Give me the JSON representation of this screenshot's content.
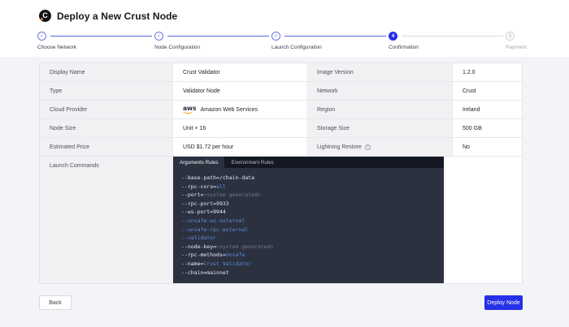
{
  "header": {
    "title": "Deploy a New Crust Node",
    "logo_letter": "C"
  },
  "stepper": {
    "steps": [
      {
        "label": "Choose Network",
        "state": "done",
        "mark": "✓"
      },
      {
        "label": "Node Configuration",
        "state": "done",
        "mark": "✓"
      },
      {
        "label": "Launch Configuration",
        "state": "done",
        "mark": "✓"
      },
      {
        "label": "Confirmation",
        "state": "active",
        "mark": "4"
      },
      {
        "label": "Payment",
        "state": "upcoming",
        "mark": "5"
      }
    ]
  },
  "table": {
    "rows": [
      {
        "label1": "Display Name",
        "value1": "Crust Validator",
        "label2": "Image Version",
        "value2": "1.2.0"
      },
      {
        "label1": "Type",
        "value1": "Validator Node",
        "label2": "Network",
        "value2": "Crust"
      },
      {
        "label1": "Cloud Provider",
        "value1": "Amazon Web Services",
        "label2": "Region",
        "value2": "Ireland"
      },
      {
        "label1": "Node Size",
        "value1": "Unit × 16",
        "label2": "Storage Size",
        "value2": "500 GB"
      },
      {
        "label1": "Estimated Price",
        "value1": "USD $1.72 per hour",
        "label2": "Lightning Restore",
        "value2": "No"
      }
    ],
    "aws_logo_text": "aws",
    "launch_commands_label": "Launch Commands"
  },
  "code_panel": {
    "tabs": [
      {
        "label": "Arguments Rules",
        "active": true
      },
      {
        "label": "Environment Rules",
        "active": false
      }
    ],
    "lines": [
      [
        [
          "--base-path=/chain-data",
          "w"
        ]
      ],
      [
        [
          "--rpc-cors=",
          "w"
        ],
        [
          "all",
          "b"
        ]
      ],
      [
        [
          "--port=",
          "w"
        ],
        [
          "<system generated>",
          "g"
        ]
      ],
      [
        [
          "--rpc-port=9933",
          "w"
        ]
      ],
      [
        [
          "--ws-port=9944",
          "w"
        ]
      ],
      [
        [
          "--unsafe-ws-external",
          "b"
        ]
      ],
      [
        [
          "--unsafe-rpc-external",
          "b"
        ]
      ],
      [
        [
          "--validator",
          "b"
        ]
      ],
      [
        [
          "--node-key=",
          "w"
        ],
        [
          "<system generated>",
          "g"
        ]
      ],
      [
        [
          "--rpc-methods=",
          "w"
        ],
        [
          "Unsafe",
          "b"
        ]
      ],
      [
        [
          "--name=",
          "w"
        ],
        [
          "Crust Validator",
          "b"
        ]
      ],
      [
        [
          "--chain=mainnet",
          "w"
        ]
      ]
    ]
  },
  "footer": {
    "back_label": "Back",
    "deploy_label": "Deploy Node"
  },
  "colors": {
    "accent_blue": "#2530e8",
    "stepper_done": "#6b76e3",
    "code_bg": "#2c3140",
    "code_tabbar_bg": "#141824",
    "code_blue": "#5c8ed8",
    "aws_orange": "#f79400",
    "logo_accent_orange": "#e8731a"
  }
}
